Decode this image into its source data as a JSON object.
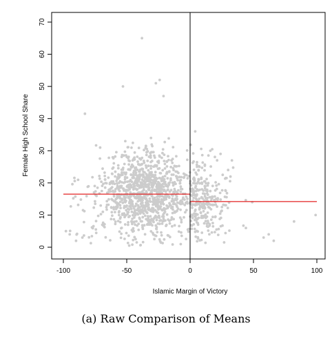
{
  "chart_data": {
    "type": "scatter",
    "xlabel": "Islamic Margin of Victory",
    "ylabel": "Female High School Share",
    "xlim": [
      -100,
      100
    ],
    "ylim": [
      0,
      70
    ],
    "x_ticks": [
      "-100",
      "-50",
      "0",
      "50",
      "100"
    ],
    "y_ticks": [
      "0",
      "10",
      "20",
      "30",
      "40",
      "50",
      "60",
      "70"
    ],
    "grid": false,
    "cutoff_x": 0,
    "point_color": "#cccccc",
    "mean_line_color": "#e32222",
    "means": [
      {
        "x": [
          -100,
          0
        ],
        "y": 16.5
      },
      {
        "x": [
          0,
          100
        ],
        "y": 14.2
      }
    ],
    "outliers": [
      {
        "x": -38,
        "y": 65
      },
      {
        "x": -24,
        "y": 52
      },
      {
        "x": -27,
        "y": 51
      },
      {
        "x": -53,
        "y": 50
      },
      {
        "x": -21,
        "y": 47
      },
      {
        "x": -83,
        "y": 41.5
      },
      {
        "x": 99,
        "y": 10
      },
      {
        "x": 49,
        "y": 14
      },
      {
        "x": 82,
        "y": 8
      },
      {
        "x": -98,
        "y": 5
      },
      {
        "x": -95,
        "y": 4
      },
      {
        "x": -90,
        "y": 2
      },
      {
        "x": -85,
        "y": 3
      },
      {
        "x": 33,
        "y": 27
      },
      {
        "x": 44,
        "y": 6
      },
      {
        "x": 58,
        "y": 3
      },
      {
        "x": 62,
        "y": 4
      },
      {
        "x": 66,
        "y": 2
      },
      {
        "x": 16,
        "y": 30
      },
      {
        "x": 24,
        "y": 29
      },
      {
        "x": 30,
        "y": 24
      },
      {
        "x": 4,
        "y": 36
      }
    ]
  },
  "caption": "(a) Raw Comparison of Means"
}
